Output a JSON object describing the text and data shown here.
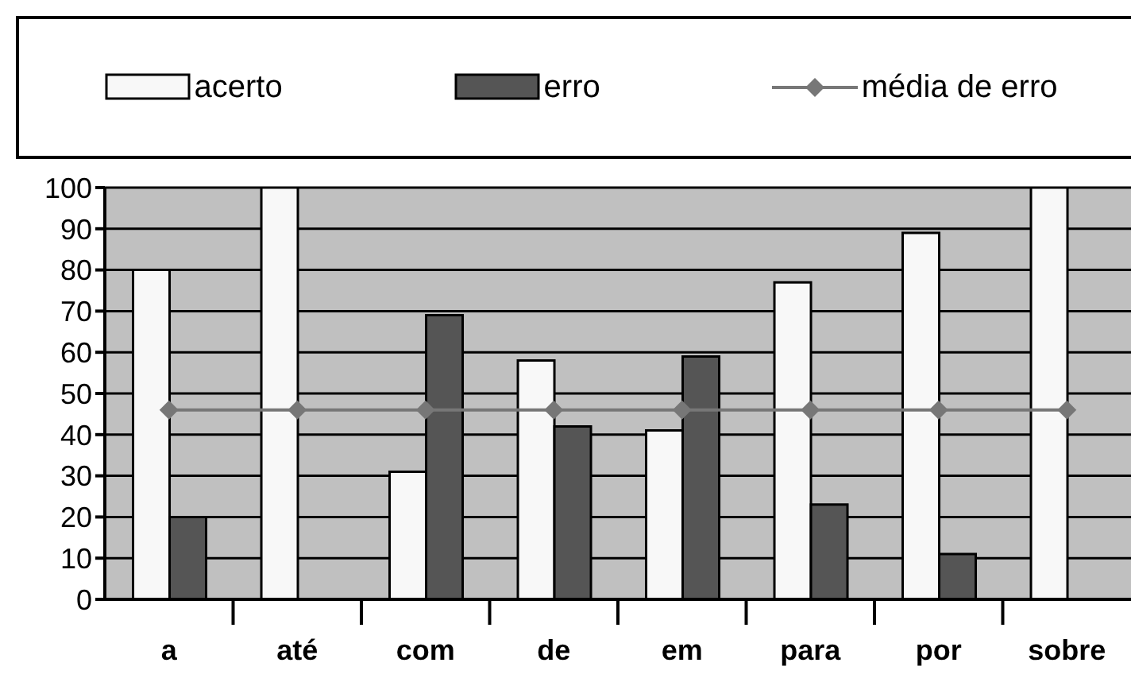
{
  "chart_data": {
    "type": "bar",
    "categories": [
      "a",
      "até",
      "com",
      "de",
      "em",
      "para",
      "por",
      "sobre"
    ],
    "series": [
      {
        "name": "acerto",
        "color": "#f8f8f8",
        "values": [
          80,
          100,
          31,
          58,
          41,
          77,
          89,
          100
        ]
      },
      {
        "name": "erro",
        "color": "#555555",
        "values": [
          20,
          0,
          69,
          42,
          59,
          23,
          11,
          0
        ]
      },
      {
        "name": "média de erro",
        "type": "line",
        "color": "#777777",
        "marker": "diamond",
        "values": [
          46,
          46,
          46,
          46,
          46,
          46,
          46,
          46
        ]
      }
    ],
    "ylim": [
      0,
      100
    ],
    "yticks": [
      0,
      10,
      20,
      30,
      40,
      50,
      60,
      70,
      80,
      90,
      100
    ],
    "grid": "y",
    "legend": "top"
  }
}
